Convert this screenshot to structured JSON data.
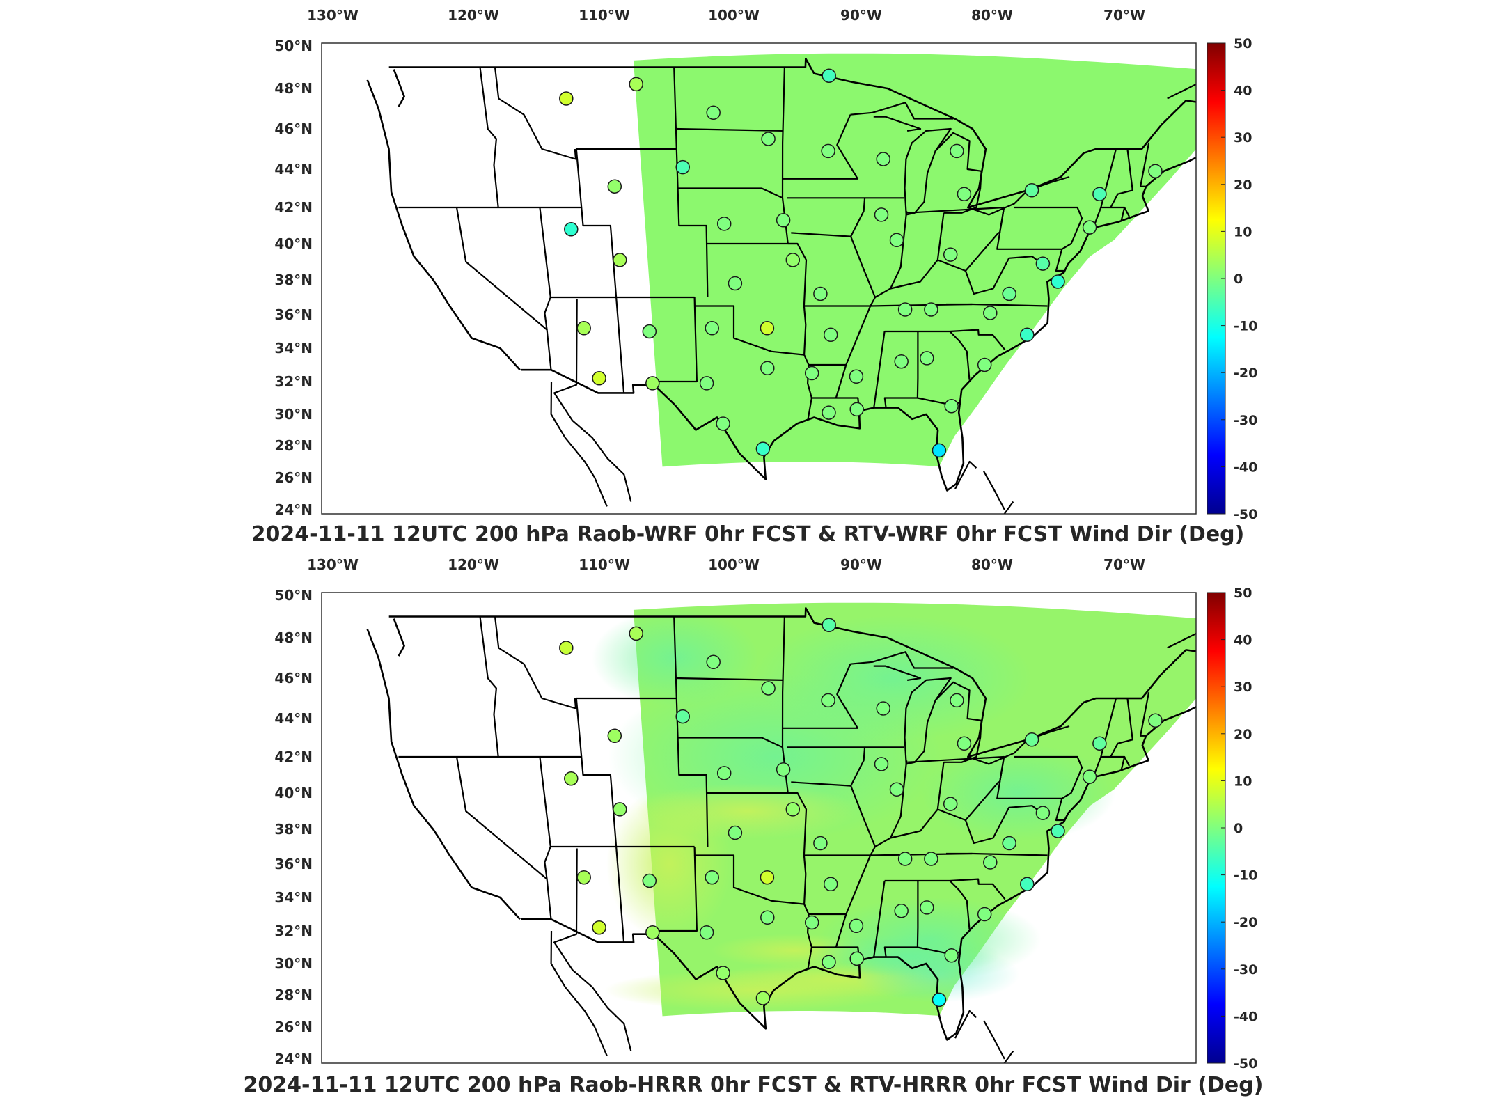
{
  "panels": [
    {
      "title": "2024-11-11 12UTC 200 hPa Raob-WRF 0hr FCST & RTV-WRF 0hr FCST Wind Dir (Deg)",
      "field_color": "#8cf86e",
      "field_texture": "uniform"
    },
    {
      "title": "2024-11-11 12UTC 200 hPa Raob-HRRR 0hr FCST & RTV-HRRR 0hr FCST Wind Dir (Deg)",
      "field_color": "#96f46a",
      "field_texture": "mottled"
    }
  ],
  "map": {
    "lon_labels": [
      "130°W",
      "120°W",
      "110°W",
      "100°W",
      "90°W",
      "80°W",
      "70°W"
    ],
    "lat_labels": [
      "50°N",
      "48°N",
      "46°N",
      "44°N",
      "42°N",
      "40°N",
      "38°N",
      "36°N",
      "34°N",
      "32°N",
      "30°N",
      "28°N",
      "26°N",
      "24°N"
    ],
    "lon_values": [
      -130,
      -120,
      -110,
      -100,
      -90,
      -80,
      -70
    ],
    "lat_values": [
      50,
      48,
      46,
      44,
      42,
      40,
      38,
      36,
      34,
      32,
      30,
      28,
      26,
      24
    ]
  },
  "colorbar": {
    "min": -50,
    "max": 50,
    "ticks": [
      "50",
      "40",
      "30",
      "20",
      "10",
      "0",
      "-10",
      "-20",
      "-30",
      "-40",
      "-50"
    ],
    "colormap": "jet"
  },
  "stations": [
    {
      "lon": -111.4,
      "lat": 47.5,
      "v": [
        8,
        7
      ]
    },
    {
      "lon": -106.6,
      "lat": 48.2,
      "v": [
        4,
        4
      ]
    },
    {
      "lon": -101.4,
      "lat": 46.8,
      "v": [
        0,
        0
      ]
    },
    {
      "lon": -97.6,
      "lat": 45.5,
      "v": [
        0,
        0
      ]
    },
    {
      "lon": -93.6,
      "lat": 48.6,
      "v": [
        -6,
        -4
      ]
    },
    {
      "lon": -93.4,
      "lat": 44.9,
      "v": [
        0,
        0
      ]
    },
    {
      "lon": -103.6,
      "lat": 44.1,
      "v": [
        -5,
        -3
      ]
    },
    {
      "lon": -108.5,
      "lat": 43.1,
      "v": [
        2,
        3
      ]
    },
    {
      "lon": -111.9,
      "lat": 40.8,
      "v": [
        -8,
        4
      ]
    },
    {
      "lon": -108.5,
      "lat": 39.1,
      "v": [
        4,
        2
      ]
    },
    {
      "lon": -100.7,
      "lat": 41.1,
      "v": [
        0,
        0
      ]
    },
    {
      "lon": -96.4,
      "lat": 41.3,
      "v": [
        0,
        0
      ]
    },
    {
      "lon": -89.3,
      "lat": 41.6,
      "v": [
        0,
        0
      ]
    },
    {
      "lon": -88.0,
      "lat": 40.2,
      "v": [
        0,
        0
      ]
    },
    {
      "lon": -89.5,
      "lat": 44.5,
      "v": [
        0,
        0
      ]
    },
    {
      "lon": -84.4,
      "lat": 44.9,
      "v": [
        0,
        0
      ]
    },
    {
      "lon": -83.5,
      "lat": 42.7,
      "v": [
        0,
        0
      ]
    },
    {
      "lon": -78.7,
      "lat": 42.9,
      "v": [
        -3,
        -2
      ]
    },
    {
      "lon": -73.8,
      "lat": 42.7,
      "v": [
        -5,
        -3
      ]
    },
    {
      "lon": -70.2,
      "lat": 43.9,
      "v": [
        0,
        0
      ]
    },
    {
      "lon": -74.0,
      "lat": 40.9,
      "v": [
        0,
        0
      ]
    },
    {
      "lon": -76.9,
      "lat": 38.9,
      "v": [
        -4,
        0
      ]
    },
    {
      "lon": -75.5,
      "lat": 37.9,
      "v": [
        -8,
        -5
      ]
    },
    {
      "lon": -83.9,
      "lat": 39.4,
      "v": [
        0,
        0
      ]
    },
    {
      "lon": -79.0,
      "lat": 37.2,
      "v": [
        -2,
        -2
      ]
    },
    {
      "lon": -80.2,
      "lat": 36.1,
      "v": [
        0,
        0
      ]
    },
    {
      "lon": -77.0,
      "lat": 34.8,
      "v": [
        -7,
        -6
      ]
    },
    {
      "lon": -79.9,
      "lat": 33.0,
      "v": [
        0,
        0
      ]
    },
    {
      "lon": -84.8,
      "lat": 36.3,
      "v": [
        0,
        0
      ]
    },
    {
      "lon": -86.6,
      "lat": 33.2,
      "v": [
        0,
        0
      ]
    },
    {
      "lon": -84.6,
      "lat": 33.4,
      "v": [
        0,
        0
      ]
    },
    {
      "lon": -90.1,
      "lat": 32.3,
      "v": [
        0,
        0
      ]
    },
    {
      "lon": -92.4,
      "lat": 34.8,
      "v": [
        0,
        0
      ]
    },
    {
      "lon": -93.7,
      "lat": 32.5,
      "v": [
        0,
        0
      ]
    },
    {
      "lon": -92.1,
      "lat": 30.1,
      "v": [
        0,
        0
      ]
    },
    {
      "lon": -89.8,
      "lat": 30.3,
      "v": [
        0,
        0
      ]
    },
    {
      "lon": -82.0,
      "lat": 30.5,
      "v": [
        0,
        0
      ]
    },
    {
      "lon": -82.4,
      "lat": 27.7,
      "v": [
        -15,
        -12
      ]
    },
    {
      "lon": -97.5,
      "lat": 27.8,
      "v": [
        -7,
        3
      ]
    },
    {
      "lon": -100.9,
      "lat": 29.4,
      "v": [
        0,
        2
      ]
    },
    {
      "lon": -102.2,
      "lat": 31.9,
      "v": [
        0,
        0
      ]
    },
    {
      "lon": -97.3,
      "lat": 32.8,
      "v": [
        0,
        0
      ]
    },
    {
      "lon": -97.4,
      "lat": 35.2,
      "v": [
        8,
        8
      ]
    },
    {
      "lon": -101.7,
      "lat": 35.2,
      "v": [
        0,
        0
      ]
    },
    {
      "lon": -106.6,
      "lat": 35.0,
      "v": [
        0,
        0
      ]
    },
    {
      "lon": -106.6,
      "lat": 31.9,
      "v": [
        3,
        3
      ]
    },
    {
      "lon": -110.9,
      "lat": 32.2,
      "v": [
        8,
        8
      ]
    },
    {
      "lon": -111.7,
      "lat": 35.2,
      "v": [
        4,
        4
      ]
    },
    {
      "lon": -99.9,
      "lat": 37.8,
      "v": [
        0,
        0
      ]
    },
    {
      "lon": -95.6,
      "lat": 39.1,
      "v": [
        2,
        2
      ]
    },
    {
      "lon": -93.4,
      "lat": 37.2,
      "v": [
        0,
        0
      ]
    },
    {
      "lon": -86.8,
      "lat": 36.3,
      "v": [
        0,
        0
      ]
    }
  ]
}
